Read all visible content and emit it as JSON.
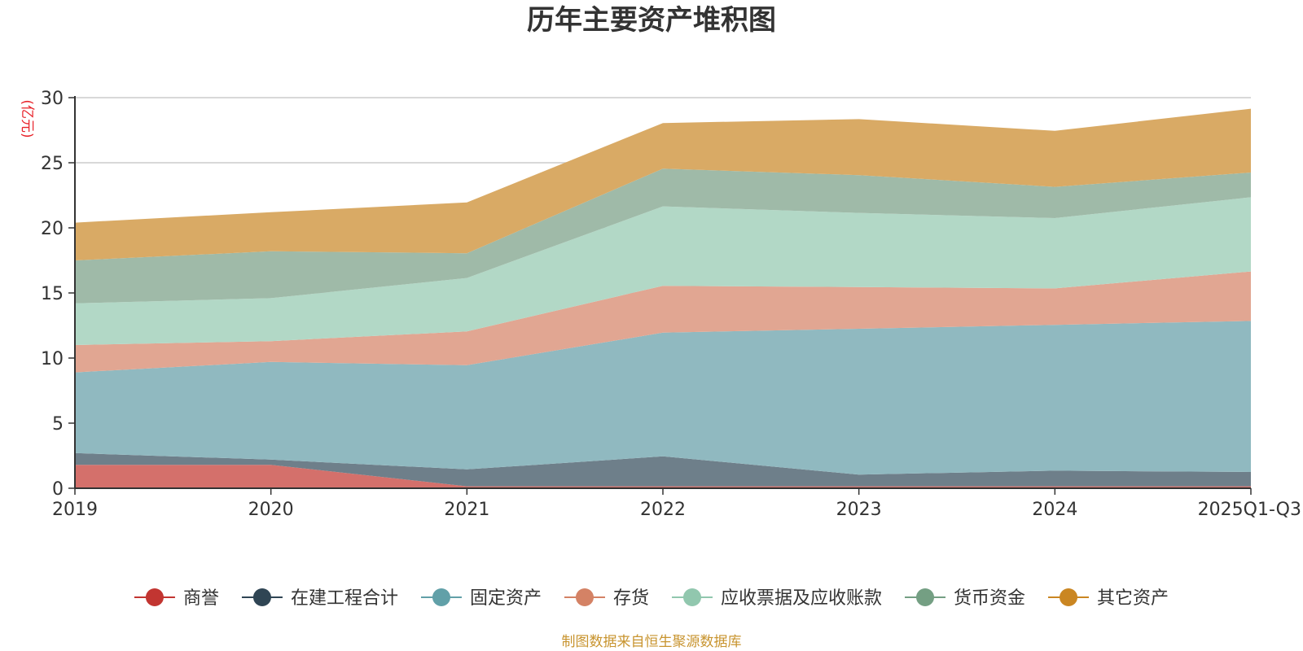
{
  "chart_data": {
    "type": "area",
    "stacked": true,
    "title": "历年主要资产堆积图",
    "ylabel": "(亿元)",
    "xlabel": "",
    "ylim": [
      0,
      30
    ],
    "yticks": [
      "0",
      "5",
      "10",
      "15",
      "20",
      "25",
      "30"
    ],
    "categories": [
      "2019",
      "2020",
      "2021",
      "2022",
      "2023",
      "2024",
      "2025Q1-Q3"
    ],
    "grid": true,
    "legend_position": "bottom",
    "series": [
      {
        "name": "商誉",
        "color": "#c23531",
        "fill": "#d4706b",
        "values": [
          1.8,
          1.8,
          0.15,
          0.15,
          0.15,
          0.15,
          0.15
        ]
      },
      {
        "name": "在建工程合计",
        "color": "#2f4554",
        "fill": "#6e7f8a",
        "values": [
          0.9,
          0.4,
          1.3,
          2.3,
          0.9,
          1.2,
          1.1
        ]
      },
      {
        "name": "固定资产",
        "color": "#61a0a8",
        "fill": "#90b9c0",
        "values": [
          6.2,
          7.5,
          8.0,
          9.5,
          11.2,
          11.2,
          11.6
        ]
      },
      {
        "name": "存货",
        "color": "#d48265",
        "fill": "#e1a692",
        "values": [
          2.1,
          1.6,
          2.6,
          3.6,
          3.2,
          2.8,
          3.8
        ]
      },
      {
        "name": "应收票据及应收账款",
        "color": "#91c7ae",
        "fill": "#b2d8c6",
        "values": [
          3.2,
          3.3,
          4.1,
          6.1,
          5.7,
          5.4,
          5.7
        ]
      },
      {
        "name": "货币资金",
        "color": "#749f83",
        "fill": "#9fbaa8",
        "values": [
          3.3,
          3.6,
          1.9,
          2.9,
          2.9,
          2.4,
          1.9
        ]
      },
      {
        "name": "其它资产",
        "color": "#ca8622",
        "fill": "#d9aa65",
        "values": [
          2.9,
          3.0,
          3.9,
          3.5,
          4.3,
          4.3,
          4.9
        ]
      }
    ]
  },
  "footer": {
    "source": "制图数据来自恒生聚源数据库"
  }
}
